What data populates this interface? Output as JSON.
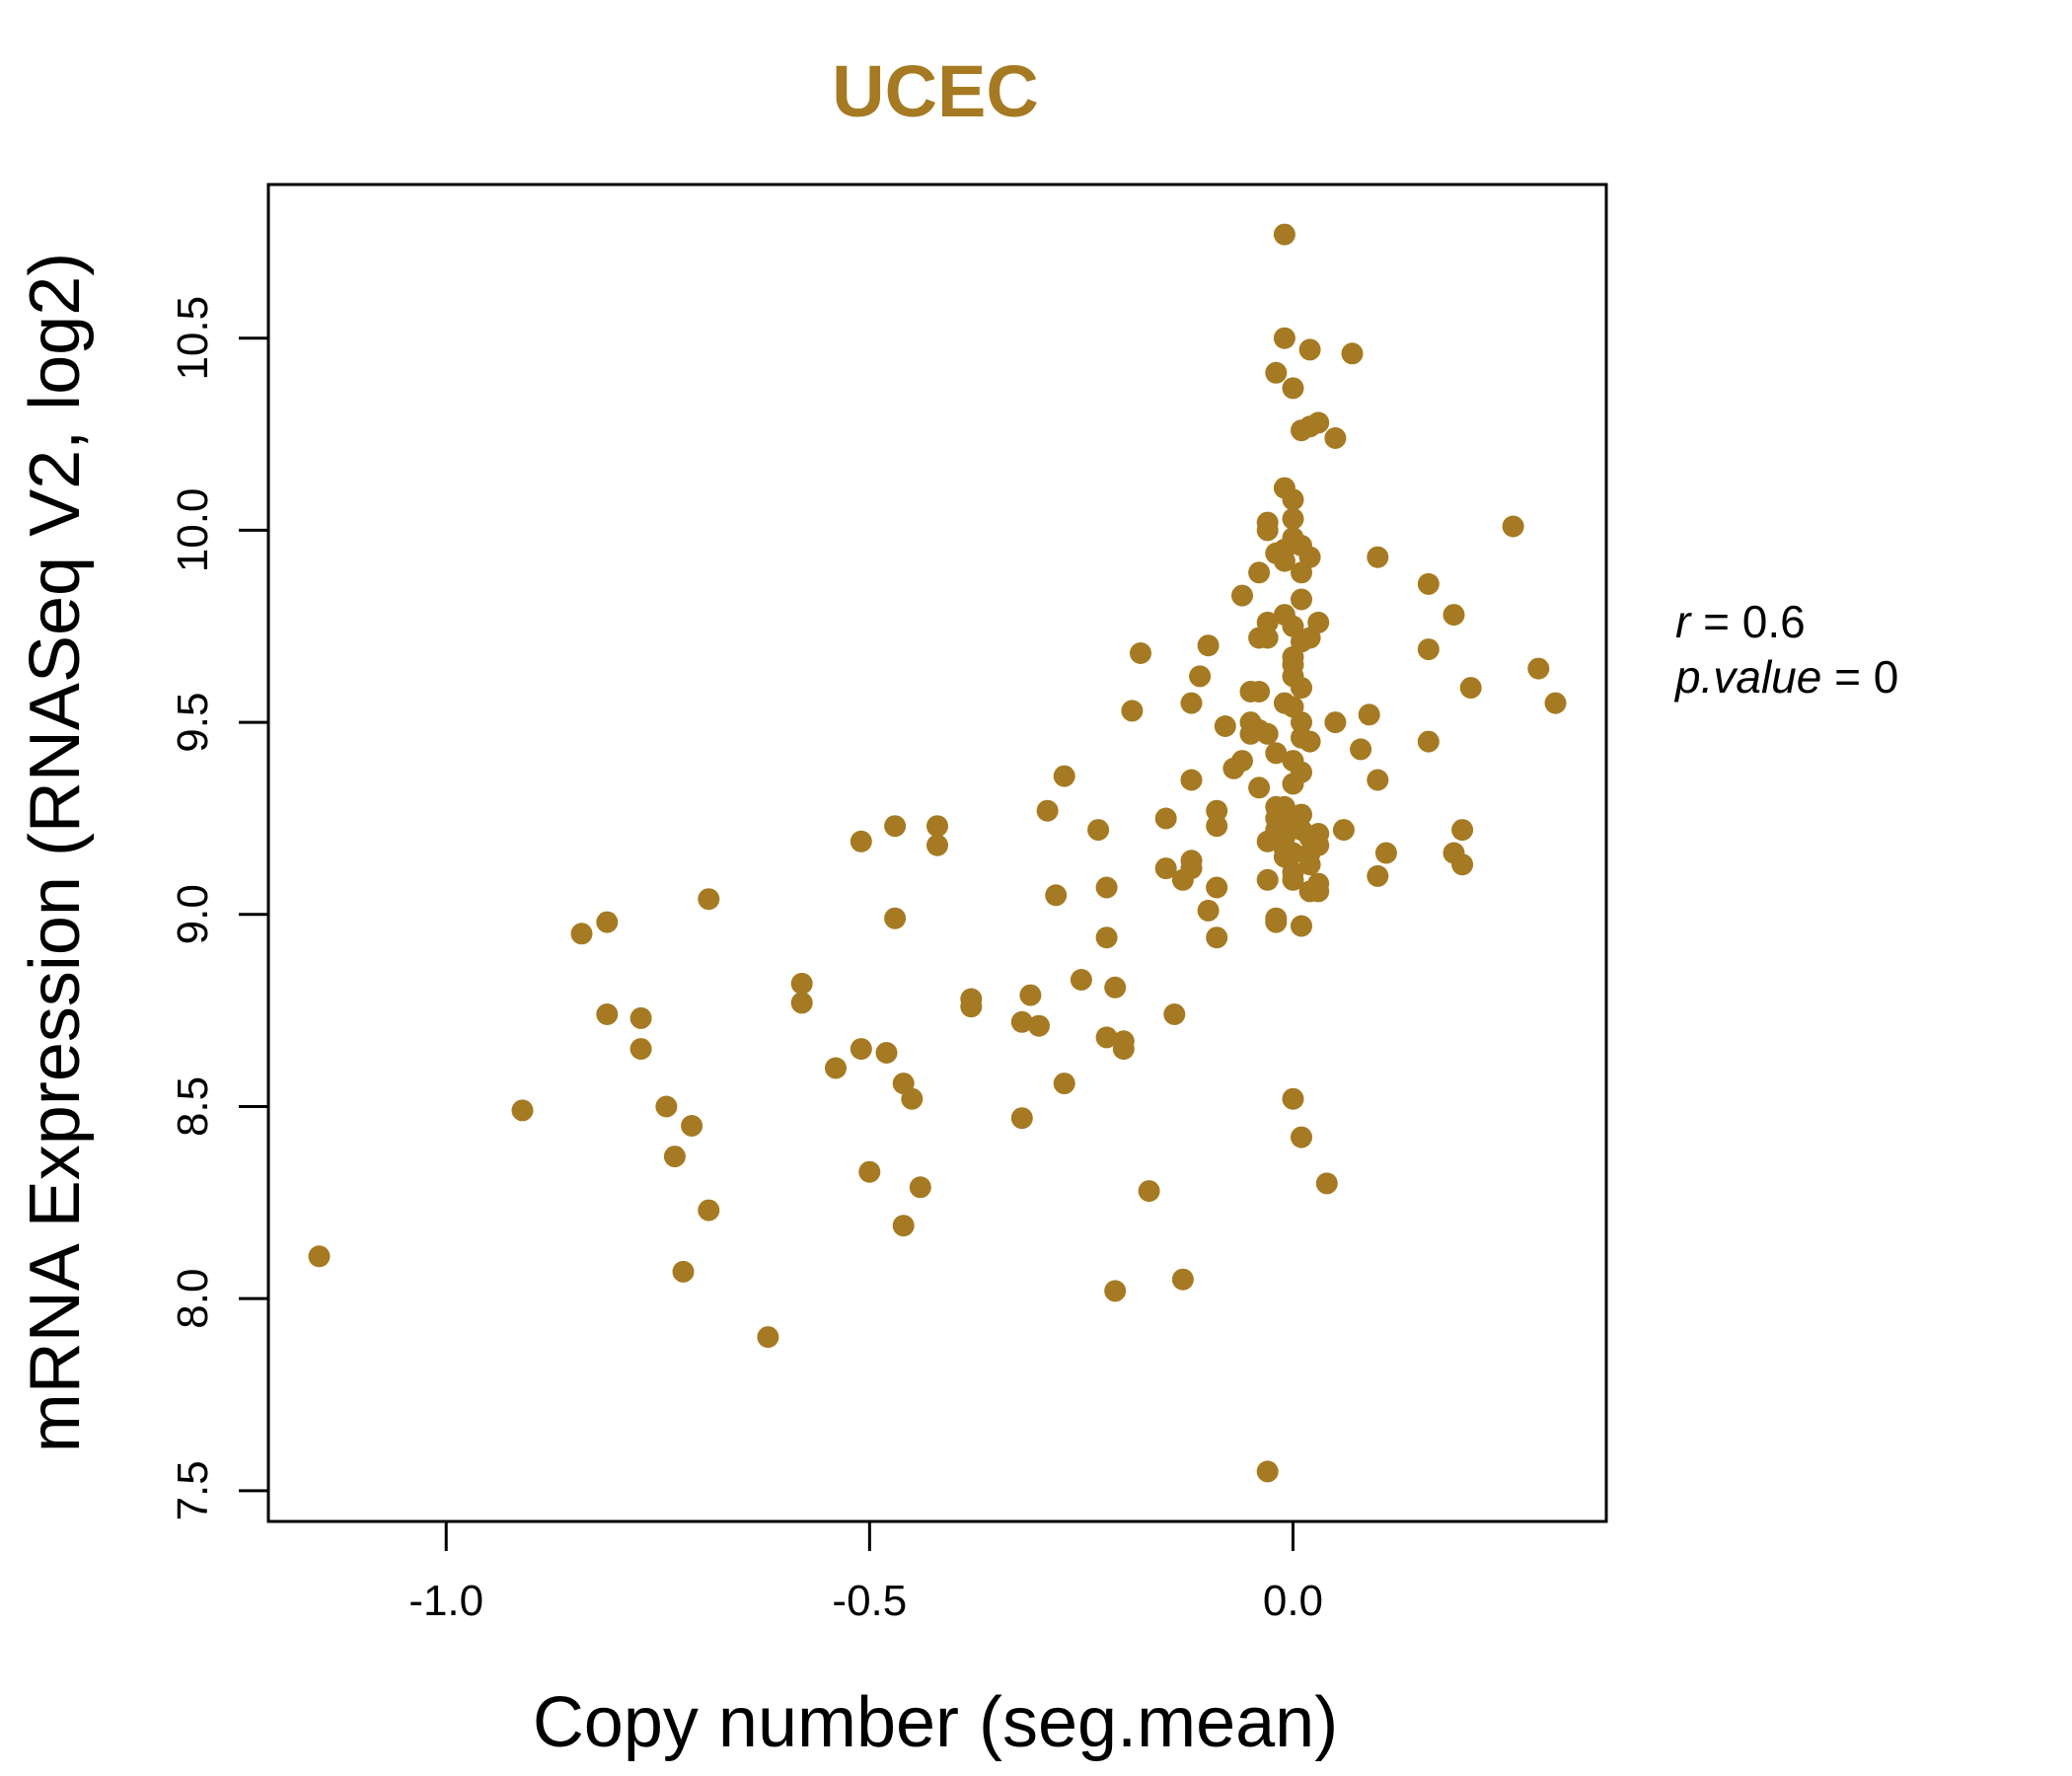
{
  "chart_data": {
    "type": "scatter",
    "title": "UCEC",
    "xlabel": "Copy number (seg.mean)",
    "ylabel": "mRNA Expression (RNASeq V2, log2)",
    "xlim": [
      -1.21,
      0.37
    ],
    "ylim": [
      7.42,
      10.9
    ],
    "xticks": [
      -1.0,
      -0.5,
      0.0
    ],
    "xtick_labels": [
      "-1.0",
      "-0.5",
      "0.0"
    ],
    "yticks": [
      7.5,
      8.0,
      8.5,
      9.0,
      9.5,
      10.0,
      10.5
    ],
    "ytick_labels": [
      "7.5",
      "8.0",
      "8.5",
      "9.0",
      "9.5",
      "10.0",
      "10.5"
    ],
    "grid": false,
    "point_color": "#a57a22",
    "annotations": [
      {
        "label_italic": "r",
        "text": "= 0.6"
      },
      {
        "label_italic": "p.value",
        "text": "= 0"
      }
    ],
    "points": [
      [
        -1.15,
        8.11
      ],
      [
        -0.91,
        8.49
      ],
      [
        -0.84,
        8.95
      ],
      [
        -0.81,
        8.98
      ],
      [
        -0.81,
        8.74
      ],
      [
        -0.77,
        8.73
      ],
      [
        -0.77,
        8.65
      ],
      [
        -0.74,
        8.5
      ],
      [
        -0.73,
        8.37
      ],
      [
        -0.72,
        8.07
      ],
      [
        -0.71,
        8.45
      ],
      [
        -0.69,
        8.23
      ],
      [
        -0.69,
        9.04
      ],
      [
        -0.62,
        7.9
      ],
      [
        -0.58,
        8.82
      ],
      [
        -0.58,
        8.77
      ],
      [
        -0.54,
        8.6
      ],
      [
        -0.51,
        8.65
      ],
      [
        -0.51,
        9.19
      ],
      [
        -0.5,
        8.33
      ],
      [
        -0.48,
        8.64
      ],
      [
        -0.47,
        8.99
      ],
      [
        -0.47,
        9.23
      ],
      [
        -0.46,
        8.56
      ],
      [
        -0.46,
        8.19
      ],
      [
        -0.45,
        8.52
      ],
      [
        -0.44,
        8.29
      ],
      [
        -0.42,
        9.18
      ],
      [
        -0.42,
        9.23
      ],
      [
        -0.38,
        8.78
      ],
      [
        -0.38,
        8.76
      ],
      [
        -0.32,
        8.72
      ],
      [
        -0.32,
        8.47
      ],
      [
        -0.31,
        8.79
      ],
      [
        -0.3,
        8.71
      ],
      [
        -0.29,
        9.27
      ],
      [
        -0.28,
        9.05
      ],
      [
        -0.27,
        9.36
      ],
      [
        -0.27,
        8.56
      ],
      [
        -0.25,
        8.83
      ],
      [
        -0.23,
        9.22
      ],
      [
        -0.22,
        9.07
      ],
      [
        -0.22,
        8.94
      ],
      [
        -0.22,
        8.68
      ],
      [
        -0.21,
        8.81
      ],
      [
        -0.21,
        8.02
      ],
      [
        -0.2,
        8.67
      ],
      [
        -0.2,
        8.65
      ],
      [
        -0.19,
        9.53
      ],
      [
        -0.18,
        9.68
      ],
      [
        -0.17,
        8.28
      ],
      [
        -0.15,
        9.25
      ],
      [
        -0.15,
        9.12
      ],
      [
        -0.14,
        8.74
      ],
      [
        -0.13,
        8.05
      ],
      [
        -0.13,
        9.09
      ],
      [
        -0.12,
        9.14
      ],
      [
        -0.12,
        9.12
      ],
      [
        -0.12,
        9.55
      ],
      [
        -0.12,
        9.35
      ],
      [
        -0.11,
        9.62
      ],
      [
        -0.1,
        9.01
      ],
      [
        -0.1,
        9.7
      ],
      [
        -0.09,
        9.27
      ],
      [
        -0.09,
        9.23
      ],
      [
        -0.09,
        8.94
      ],
      [
        -0.09,
        9.07
      ],
      [
        -0.08,
        9.49
      ],
      [
        -0.07,
        9.38
      ],
      [
        -0.06,
        9.4
      ],
      [
        -0.06,
        9.83
      ],
      [
        -0.05,
        9.58
      ],
      [
        -0.05,
        9.47
      ],
      [
        -0.05,
        9.5
      ],
      [
        -0.04,
        9.58
      ],
      [
        -0.04,
        9.33
      ],
      [
        -0.04,
        9.48
      ],
      [
        -0.04,
        9.72
      ],
      [
        -0.04,
        9.89
      ],
      [
        -0.03,
        9.19
      ],
      [
        -0.03,
        9.72
      ],
      [
        -0.03,
        9.76
      ],
      [
        -0.03,
        10.02
      ],
      [
        -0.03,
        10.0
      ],
      [
        -0.03,
        9.47
      ],
      [
        -0.03,
        9.09
      ],
      [
        -0.03,
        7.55
      ],
      [
        -0.02,
        9.42
      ],
      [
        -0.02,
        9.94
      ],
      [
        -0.02,
        10.41
      ],
      [
        -0.02,
        9.28
      ],
      [
        -0.02,
        9.25
      ],
      [
        -0.02,
        8.99
      ],
      [
        -0.02,
        8.98
      ],
      [
        -0.02,
        9.22
      ],
      [
        -0.02,
        9.2
      ],
      [
        -0.01,
        10.11
      ],
      [
        -0.01,
        10.77
      ],
      [
        -0.01,
        10.5
      ],
      [
        -0.01,
        9.17
      ],
      [
        -0.01,
        9.22
      ],
      [
        -0.01,
        9.15
      ],
      [
        -0.01,
        9.25
      ],
      [
        -0.01,
        9.92
      ],
      [
        -0.01,
        9.95
      ],
      [
        -0.01,
        9.55
      ],
      [
        -0.01,
        9.78
      ],
      [
        -0.01,
        9.28
      ],
      [
        -0.01,
        9.2
      ],
      [
        0.0,
        10.37
      ],
      [
        0.0,
        9.65
      ],
      [
        0.0,
        9.75
      ],
      [
        0.0,
        9.4
      ],
      [
        0.0,
        9.34
      ],
      [
        0.0,
        9.11
      ],
      [
        0.0,
        9.09
      ],
      [
        0.0,
        9.24
      ],
      [
        0.0,
        9.16
      ],
      [
        0.0,
        8.52
      ],
      [
        0.0,
        9.98
      ],
      [
        0.0,
        10.03
      ],
      [
        0.0,
        10.08
      ],
      [
        0.0,
        9.62
      ],
      [
        0.0,
        9.67
      ],
      [
        0.0,
        9.54
      ],
      [
        0.01,
        9.26
      ],
      [
        0.01,
        9.22
      ],
      [
        0.01,
        9.37
      ],
      [
        0.01,
        9.71
      ],
      [
        0.01,
        9.96
      ],
      [
        0.01,
        9.89
      ],
      [
        0.01,
        9.82
      ],
      [
        0.01,
        9.59
      ],
      [
        0.01,
        8.42
      ],
      [
        0.01,
        8.97
      ],
      [
        0.01,
        10.26
      ],
      [
        0.01,
        9.46
      ],
      [
        0.01,
        9.5
      ],
      [
        0.02,
        9.93
      ],
      [
        0.02,
        9.13
      ],
      [
        0.02,
        9.16
      ],
      [
        0.02,
        9.45
      ],
      [
        0.02,
        9.72
      ],
      [
        0.02,
        10.27
      ],
      [
        0.02,
        10.47
      ],
      [
        0.02,
        9.2
      ],
      [
        0.02,
        9.06
      ],
      [
        0.03,
        9.76
      ],
      [
        0.03,
        9.08
      ],
      [
        0.03,
        9.18
      ],
      [
        0.03,
        9.21
      ],
      [
        0.03,
        10.28
      ],
      [
        0.03,
        9.06
      ],
      [
        0.04,
        8.3
      ],
      [
        0.05,
        10.24
      ],
      [
        0.05,
        9.5
      ],
      [
        0.06,
        9.22
      ],
      [
        0.07,
        10.46
      ],
      [
        0.08,
        9.43
      ],
      [
        0.09,
        9.52
      ],
      [
        0.1,
        9.1
      ],
      [
        0.1,
        9.93
      ],
      [
        0.1,
        9.35
      ],
      [
        0.11,
        9.16
      ],
      [
        0.16,
        9.86
      ],
      [
        0.16,
        9.69
      ],
      [
        0.16,
        9.45
      ],
      [
        0.19,
        9.16
      ],
      [
        0.19,
        9.78
      ],
      [
        0.2,
        9.13
      ],
      [
        0.2,
        9.22
      ],
      [
        0.21,
        9.59
      ],
      [
        0.26,
        10.01
      ],
      [
        0.29,
        9.64
      ],
      [
        0.31,
        9.55
      ]
    ]
  }
}
